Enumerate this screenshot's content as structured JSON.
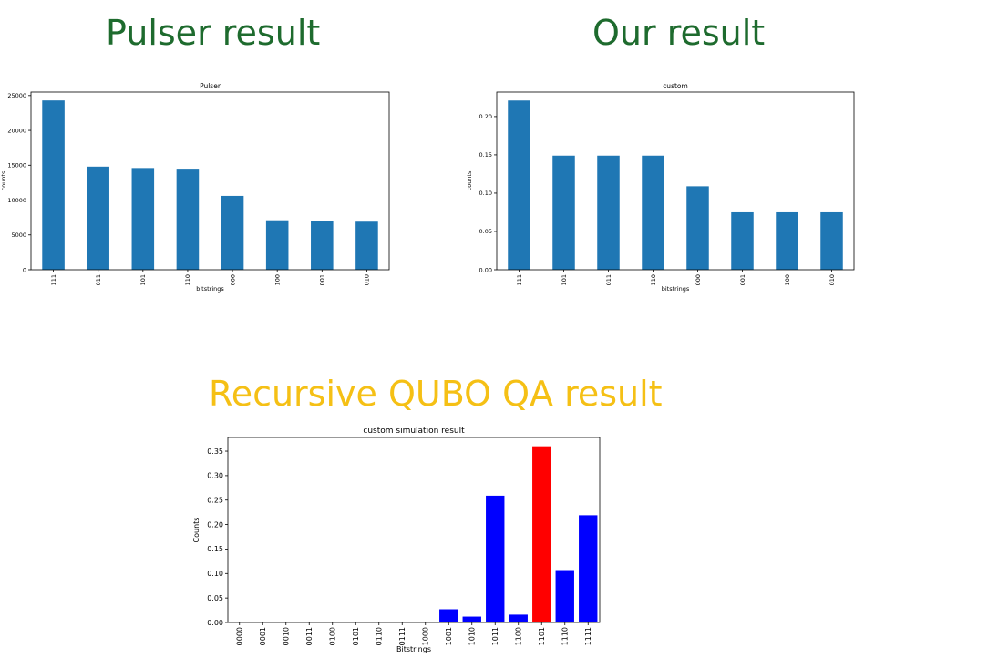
{
  "headings": {
    "pulser": "Pulser result",
    "ours": "Our result",
    "qubo": "Recursive QUBO QA result"
  },
  "colors": {
    "heading_green": "#1e6b2e",
    "heading_gold": "#f5c015",
    "bar_default": "#1f77b4",
    "bar_blue": "#0000ff",
    "bar_highlight": "#ff0000"
  },
  "chart_data": [
    {
      "type": "bar",
      "title": "Pulser",
      "xlabel": "bitstrings",
      "ylabel": "counts",
      "categories": [
        "111",
        "011",
        "101",
        "110",
        "000",
        "100",
        "001",
        "010"
      ],
      "values": [
        24300,
        14800,
        14600,
        14500,
        10600,
        7100,
        7000,
        6900
      ],
      "ylim": [
        0,
        25500
      ],
      "yticks": [
        0,
        5000,
        10000,
        15000,
        20000,
        25000
      ],
      "ytick_labels": [
        "0",
        "5000",
        "10000",
        "15000",
        "20000",
        "25000"
      ],
      "xtick_rotation": "vertical",
      "bar_colors": [
        "#1f77b4",
        "#1f77b4",
        "#1f77b4",
        "#1f77b4",
        "#1f77b4",
        "#1f77b4",
        "#1f77b4",
        "#1f77b4"
      ],
      "grid": false,
      "legend": "none"
    },
    {
      "type": "bar",
      "title": "custom",
      "xlabel": "bitstrings",
      "ylabel": "counts",
      "categories": [
        "111",
        "101",
        "011",
        "110",
        "000",
        "001",
        "100",
        "010"
      ],
      "values": [
        0.221,
        0.149,
        0.149,
        0.149,
        0.109,
        0.075,
        0.075,
        0.075
      ],
      "ylim": [
        0,
        0.232
      ],
      "yticks": [
        0,
        0.05,
        0.1,
        0.15,
        0.2
      ],
      "ytick_labels": [
        "0.00",
        "0.05",
        "0.10",
        "0.15",
        "0.20"
      ],
      "xtick_rotation": "vertical",
      "bar_colors": [
        "#1f77b4",
        "#1f77b4",
        "#1f77b4",
        "#1f77b4",
        "#1f77b4",
        "#1f77b4",
        "#1f77b4",
        "#1f77b4"
      ],
      "grid": false,
      "legend": "none"
    },
    {
      "type": "bar",
      "title": "custom simulation result",
      "xlabel": "Bitstrings",
      "ylabel": "Counts",
      "categories": [
        "0000",
        "0001",
        "0010",
        "0011",
        "0100",
        "0101",
        "0110",
        "0111",
        "1000",
        "1001",
        "1010",
        "1011",
        "1100",
        "1101",
        "1110",
        "1111"
      ],
      "values": [
        0,
        0,
        0,
        0,
        0,
        0,
        0,
        0,
        0,
        0.027,
        0.012,
        0.259,
        0.016,
        0.36,
        0.107,
        0.219
      ],
      "ylim": [
        0,
        0.378
      ],
      "yticks": [
        0,
        0.05,
        0.1,
        0.15,
        0.2,
        0.25,
        0.3,
        0.35
      ],
      "ytick_labels": [
        "0.00",
        "0.05",
        "0.10",
        "0.15",
        "0.20",
        "0.25",
        "0.30",
        "0.35"
      ],
      "xtick_rotation": "vertical",
      "bar_colors": [
        "#0000ff",
        "#0000ff",
        "#0000ff",
        "#0000ff",
        "#0000ff",
        "#0000ff",
        "#0000ff",
        "#0000ff",
        "#0000ff",
        "#0000ff",
        "#0000ff",
        "#0000ff",
        "#0000ff",
        "#ff0000",
        "#0000ff",
        "#0000ff"
      ],
      "grid": false,
      "legend": "none"
    }
  ]
}
